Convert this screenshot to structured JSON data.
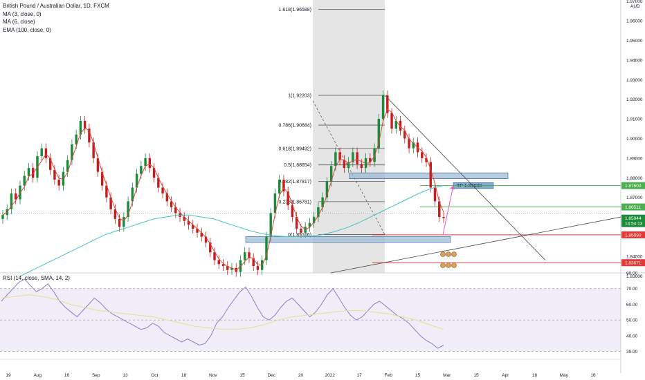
{
  "legend": {
    "title": "British Pound / Australian Dollar, 1D, FXCM",
    "ma3": "MA (3, close, 0)",
    "ma6": "MA (6, close)",
    "ema100": "EMA (100, close, 0)"
  },
  "rsi_legend": "RSI (14, close, SMA, 14, 2)",
  "currency_label": "AUD",
  "tp_label": "TP 1.87600",
  "colors": {
    "up": "#1b8a3a",
    "down": "#c41f1f",
    "ma_fast": "#d8453a",
    "ema": "#45c2c9",
    "rsi": "#8a7bd1",
    "rsi_ma": "#e6e08a",
    "zone_fill": "#9bb8d4",
    "zone_border": "#2c5c8f",
    "green_level": "#4caf50",
    "red_level": "#e53935",
    "pink_arrow": "#e957c8"
  },
  "chart_data": [
    {
      "type": "candlestick",
      "title": "British Pound / Australian Dollar, 1D, FXCM",
      "ylim": [
        1.8315,
        1.9706
      ],
      "y_ticks": [
        "1.97000",
        "1.96000",
        "1.95000",
        "1.94000",
        "1.93000",
        "1.92000",
        "1.91000",
        "1.90000",
        "1.89000",
        "1.88000",
        "1.87000",
        "1.86000",
        "1.85000",
        "1.84000",
        "1.83000"
      ],
      "x_ticks": [
        "19",
        "Aug",
        "16",
        "Sep",
        "13",
        "Oct",
        "18",
        "Nov",
        "15",
        "Dec",
        "20",
        "2022",
        "17",
        "Feb",
        "15",
        "Mar",
        "15",
        "Apr",
        "18",
        "May",
        "16"
      ],
      "price_tags": [
        {
          "label": "1.87600",
          "value": 1.876,
          "color": "#4caf50"
        },
        {
          "label": "1.86511",
          "value": 1.86511,
          "color": "#4caf50"
        },
        {
          "label": "1.85944",
          "value": 1.85944,
          "color": "#1b8a3a",
          "sub": "14:54:13"
        },
        {
          "label": "1.85090",
          "value": 1.8509,
          "color": "#e53935"
        },
        {
          "label": "1.83671",
          "value": 1.83671,
          "color": "#e53935"
        }
      ],
      "fib_levels": [
        {
          "label": "1.618(1.96588)",
          "value": 1.96588
        },
        {
          "label": "1(1.92203)",
          "value": 1.92203
        },
        {
          "label": "0.786(1.90684)",
          "value": 1.90684
        },
        {
          "label": "0.618(1.89492)",
          "value": 1.89492
        },
        {
          "label": "0.5(1.88654)",
          "value": 1.88654
        },
        {
          "label": "0.382(1.87817)",
          "value": 1.87817
        },
        {
          "label": "0.236(1.86781)",
          "value": 1.86781
        },
        {
          "label": "0(1.85106)",
          "value": 1.85106
        }
      ],
      "horizontal_levels": [
        {
          "value": 1.876,
          "color": "green"
        },
        {
          "value": 1.86511,
          "color": "green"
        },
        {
          "value": 1.8509,
          "color": "red"
        },
        {
          "value": 1.83671,
          "color": "red"
        }
      ],
      "closes": [
        1.861,
        1.864,
        1.872,
        1.869,
        1.876,
        1.881,
        1.885,
        1.88,
        1.891,
        1.895,
        1.89,
        1.884,
        1.879,
        1.876,
        1.883,
        1.889,
        1.897,
        1.902,
        1.909,
        1.905,
        1.898,
        1.89,
        1.883,
        1.876,
        1.87,
        1.864,
        1.859,
        1.855,
        1.86,
        1.868,
        1.875,
        1.882,
        1.886,
        1.89,
        1.885,
        1.88,
        1.875,
        1.872,
        1.868,
        1.865,
        1.862,
        1.86,
        1.858,
        1.856,
        1.854,
        1.852,
        1.85,
        1.847,
        1.842,
        1.838,
        1.836,
        1.835,
        1.833,
        1.834,
        1.832,
        1.838,
        1.842,
        1.839,
        1.835,
        1.833,
        1.838,
        1.85,
        1.862,
        1.872,
        1.879,
        1.873,
        1.866,
        1.86,
        1.854,
        1.852,
        1.855,
        1.857,
        1.86,
        1.865,
        1.87,
        1.878,
        1.886,
        1.893,
        1.889,
        1.885,
        1.888,
        1.893,
        1.887,
        1.885,
        1.89,
        1.888,
        1.895,
        1.91,
        1.922,
        1.913,
        1.905,
        1.909,
        1.904,
        1.9,
        1.895,
        1.898,
        1.893,
        1.89,
        1.888,
        1.875,
        1.868,
        1.86,
        1.8594
      ],
      "ema100": [
        1.83,
        1.833,
        1.836,
        1.839,
        1.842,
        1.845,
        1.848,
        1.851,
        1.853,
        1.855,
        1.857,
        1.859,
        1.86,
        1.861,
        1.861,
        1.86,
        1.859,
        1.857,
        1.855,
        1.853,
        1.8515,
        1.8505,
        1.85,
        1.85,
        1.8503,
        1.851,
        1.8525,
        1.8545,
        1.857,
        1.86,
        1.863,
        1.866,
        1.869,
        1.872,
        1.8745,
        1.876
      ],
      "rsi": {
        "ylim": [
          25,
          80
        ],
        "y_ticks": [
          "80.00",
          "70.00",
          "60.00",
          "50.00",
          "40.00",
          "30.00"
        ],
        "bands": [
          70,
          50,
          30
        ],
        "values": [
          62,
          66,
          70,
          74,
          76,
          72,
          68,
          70,
          73,
          68,
          62,
          58,
          55,
          52,
          56,
          60,
          64,
          61,
          57,
          54,
          52,
          50,
          48,
          46,
          44,
          45,
          48,
          46,
          42,
          40,
          38,
          36,
          38,
          36,
          34,
          35,
          40,
          48,
          52,
          58,
          63,
          68,
          71,
          65,
          58,
          52,
          50,
          53,
          58,
          62,
          64,
          60,
          56,
          52,
          55,
          60,
          66,
          70,
          64,
          58,
          53,
          50,
          52,
          56,
          60,
          62,
          59,
          56,
          53,
          51,
          48,
          44,
          40,
          37,
          35,
          32,
          34
        ],
        "ma": [
          64,
          65,
          66,
          65,
          63,
          60,
          58,
          56,
          55,
          54,
          53,
          52,
          50,
          48,
          46,
          45,
          44,
          44,
          45,
          47,
          50,
          52,
          53,
          54,
          55,
          56,
          56,
          55,
          54,
          52,
          50,
          47,
          44
        ]
      }
    }
  ]
}
